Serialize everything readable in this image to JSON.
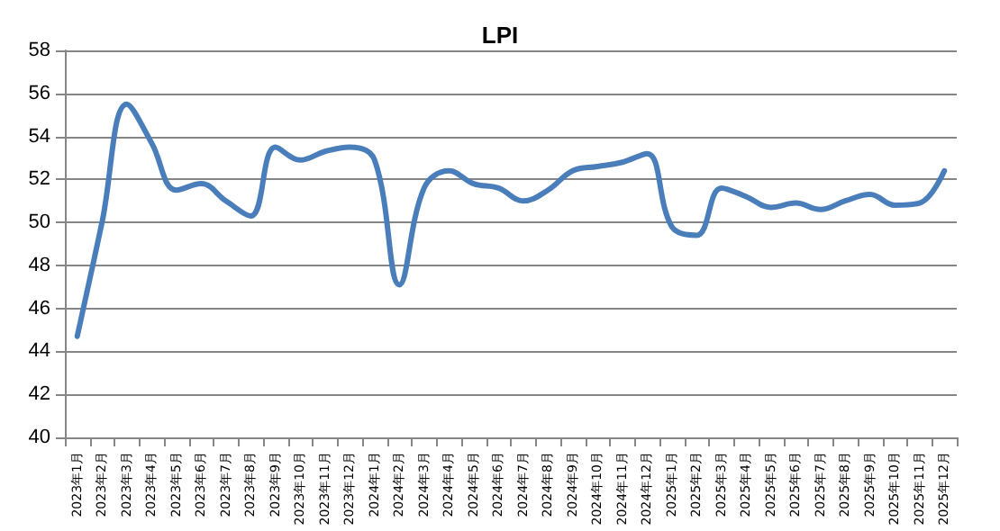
{
  "chart_data": {
    "type": "line",
    "title": "LPI",
    "categories": [
      "2023年1月",
      "2023年2月",
      "2023年3月",
      "2023年4月",
      "2023年5月",
      "2023年6月",
      "2023年7月",
      "2023年8月",
      "2023年9月",
      "2023年10月",
      "2023年11月",
      "2023年12月",
      "2024年1月",
      "2024年2月",
      "2024年3月",
      "2024年4月",
      "2024年5月",
      "2024年6月",
      "2024年7月",
      "2024年8月",
      "2024年9月",
      "2024年10月",
      "2024年11月",
      "2024年12月",
      "2025年1月",
      "2025年2月",
      "2025年3月",
      "2025年4月",
      "2025年5月",
      "2025年6月",
      "2025年7月",
      "2025年8月",
      "2025年9月",
      "2025年10月",
      "2025年11月",
      "2025年12月"
    ],
    "series": [
      {
        "color": "#4a7ebb",
        "values": [
          44.7,
          50.0,
          55.5,
          53.7,
          51.5,
          51.8,
          51.0,
          50.3,
          53.5,
          52.9,
          53.3,
          53.5,
          52.9,
          47.1,
          51.6,
          52.4,
          51.8,
          51.6,
          51.0,
          51.5,
          52.4,
          52.6,
          52.8,
          53.2,
          49.8,
          49.4,
          51.6,
          51.2,
          50.7,
          50.9,
          50.6,
          51.0,
          51.3,
          50.8,
          50.9,
          52.4
        ]
      }
    ],
    "ylim": [
      40,
      58
    ],
    "yticks": [
      40,
      42,
      44,
      46,
      48,
      50,
      52,
      54,
      56,
      58
    ],
    "grid": "y",
    "marker": "none",
    "line_style": "solid"
  }
}
